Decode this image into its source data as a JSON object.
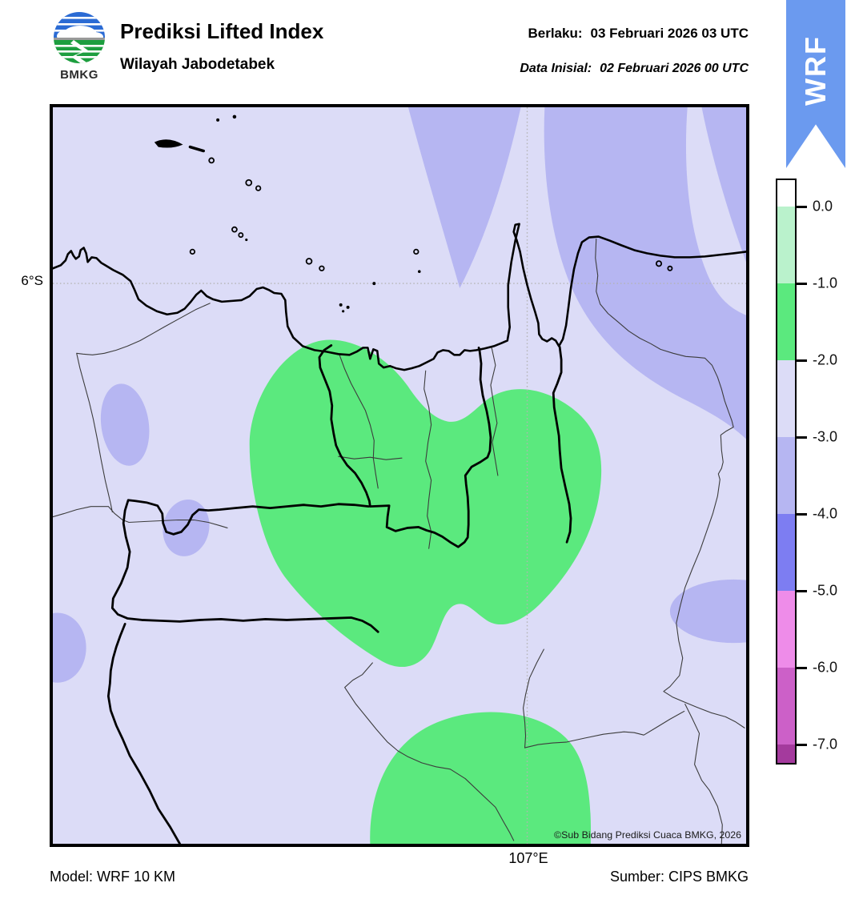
{
  "header": {
    "logo_text": "BMKG",
    "title": "Prediksi Lifted Index",
    "subtitle": "Wilayah Jabodetabek",
    "valid_label": "Berlaku:",
    "valid_value": "03 Februari 2026 03 UTC",
    "init_label": "Data Inisial:",
    "init_value": "02 Februari 2026 00 UTC",
    "ribbon_label": "WRF"
  },
  "map": {
    "lat_tick": "6°S",
    "lon_tick": "107°E",
    "credit": "©Sub Bidang Prediksi Cuaca BMKG, 2026"
  },
  "colorbar": {
    "tick_labels": [
      "0.0",
      "-1.0",
      "-2.0",
      "-3.0",
      "-4.0",
      "-5.0",
      "-6.0",
      "-7.0"
    ],
    "segment_colors": [
      "#ffffff",
      "#baf2cc",
      "#5be97e",
      "#dcdcf7",
      "#b6b6f2",
      "#7d7df2",
      "#ee8ce9",
      "#cc60c8",
      "#a43a9d"
    ],
    "segment_heights": [
      33,
      96,
      96,
      96,
      96,
      96,
      96,
      96,
      23
    ]
  },
  "footer": {
    "model": "Model: WRF 10 KM",
    "source": "Sumber: CIPS BMKG"
  },
  "colors": {
    "sea": "#dcdcf7",
    "periwinkle": "#b6b6f2",
    "green": "#5be97e",
    "ribbon": "#6b9aef",
    "admin": "#3c3c3c",
    "grid": "#b3b3b3"
  },
  "chart_data": {
    "type": "heatmap",
    "subtype": "filled-contour-weather-map",
    "variable": "Lifted Index",
    "region": "Jabodetabek",
    "valid_time": "03 Februari 2026 03 UTC",
    "initial_time": "02 Februari 2026 00 UTC",
    "model": "WRF 10 KM",
    "source": "CIPS BMKG",
    "colorbar_levels": [
      0.0,
      -1.0,
      -2.0,
      -3.0,
      -4.0,
      -5.0,
      -6.0,
      -7.0
    ],
    "colorbar_colors_top_to_bottom": [
      "#ffffff",
      "#baf2cc",
      "#5be97e",
      "#dcdcf7",
      "#b6b6f2",
      "#7d7df2",
      "#ee8ce9",
      "#cc60c8",
      "#a43a9d"
    ],
    "gridlines": {
      "latitude": "6°S",
      "longitude": "107°E"
    },
    "regions_depicted": [
      {
        "value_range": "-2 to -3",
        "color": "#dcdcf7",
        "coverage": "background over most of map (sea and land)"
      },
      {
        "value_range": "-3 to -4",
        "color": "#b6b6f2",
        "coverage": "large lobe across north-east / Java Sea, small ellipse patches west, center-west and east edge"
      },
      {
        "value_range": "-1 to -2",
        "color": "#5be97e",
        "coverage": "large central blob over Jakarta-Bogor-Bekasi with eastern lobe, plus southern blob touching bottom edge"
      }
    ]
  }
}
